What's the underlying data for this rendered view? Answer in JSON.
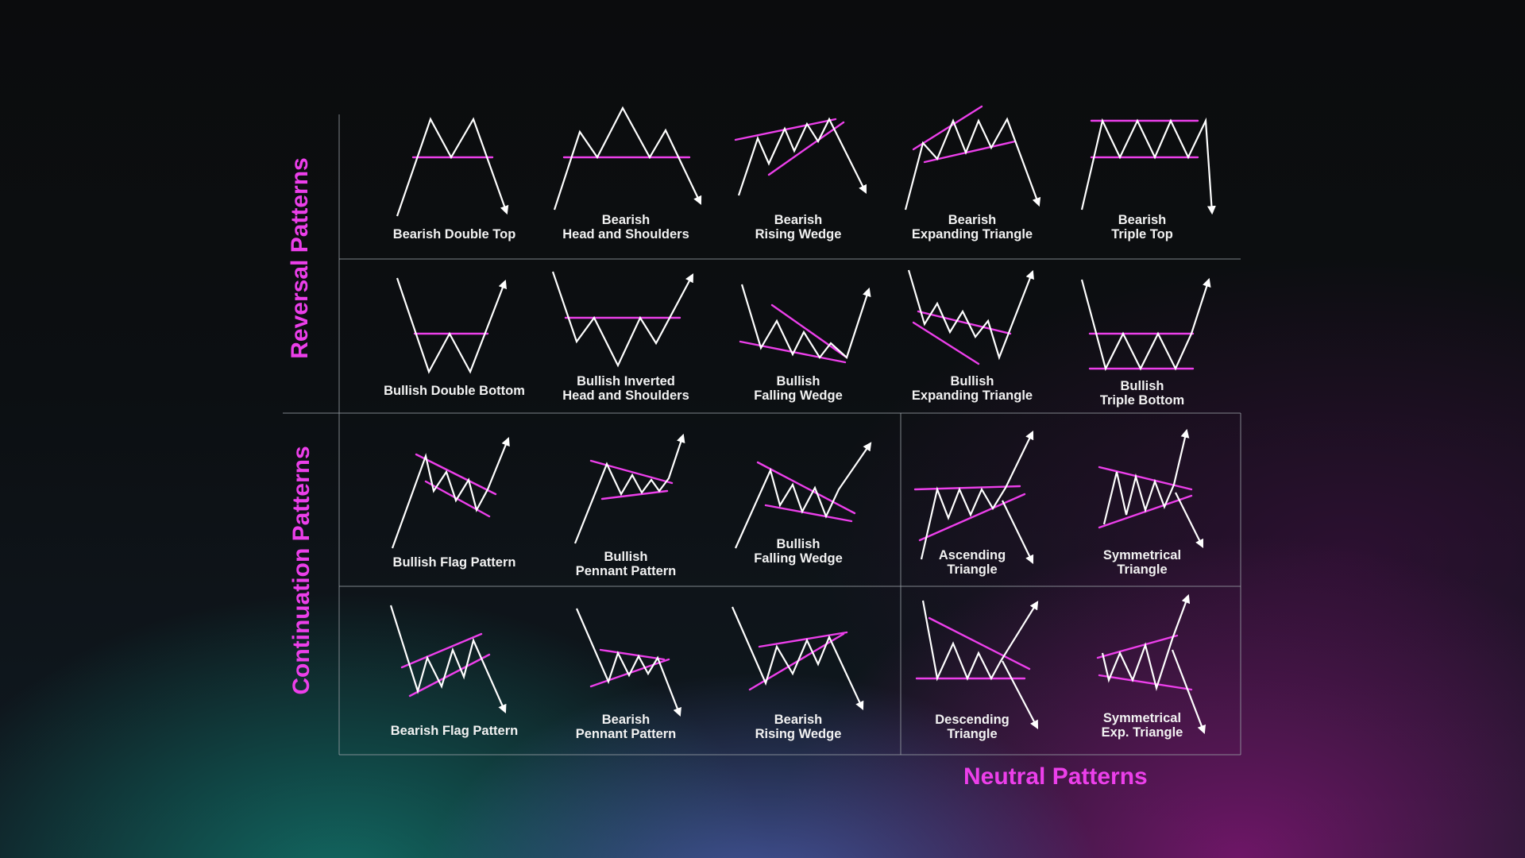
{
  "sections": {
    "reversal": "Reversal Patterns",
    "continuation": "Continuation Patterns",
    "neutral": "Neutral Patterns"
  },
  "colors": {
    "accent": "#ec3fea",
    "line": "#ffffff",
    "grid": "#9aa0a6"
  },
  "rows": [
    {
      "patterns": [
        {
          "label": "Bearish Double Top",
          "icon": "bearish-double-top-icon"
        },
        {
          "label": "Bearish\nHead and Shoulders",
          "icon": "bearish-head-and-shoulders-icon"
        },
        {
          "label": "Bearish\nRising Wedge",
          "icon": "bearish-rising-wedge-icon"
        },
        {
          "label": "Bearish\nExpanding Triangle",
          "icon": "bearish-expanding-triangle-icon"
        },
        {
          "label": "Bearish\nTriple Top",
          "icon": "bearish-triple-top-icon"
        }
      ]
    },
    {
      "patterns": [
        {
          "label": "Bullish Double Bottom",
          "icon": "bullish-double-bottom-icon"
        },
        {
          "label": "Bullish Inverted\nHead and Shoulders",
          "icon": "bullish-inverted-head-and-shoulders-icon"
        },
        {
          "label": "Bullish\nFalling Wedge",
          "icon": "bullish-falling-wedge-icon"
        },
        {
          "label": "Bullish\nExpanding Triangle",
          "icon": "bullish-expanding-triangle-icon"
        },
        {
          "label": "Bullish\nTriple Bottom",
          "icon": "bullish-triple-bottom-icon"
        }
      ]
    },
    {
      "patterns": [
        {
          "label": "Bullish Flag Pattern",
          "icon": "bullish-flag-icon"
        },
        {
          "label": "Bullish\nPennant Pattern",
          "icon": "bullish-pennant-icon"
        },
        {
          "label": "Bullish\nFalling Wedge",
          "icon": "bullish-falling-wedge-continuation-icon"
        },
        {
          "label": "Ascending\nTriangle",
          "icon": "ascending-triangle-icon"
        },
        {
          "label": "Symmetrical\nTriangle",
          "icon": "symmetrical-triangle-icon"
        }
      ]
    },
    {
      "patterns": [
        {
          "label": "Bearish Flag Pattern",
          "icon": "bearish-flag-icon"
        },
        {
          "label": "Bearish\nPennant Pattern",
          "icon": "bearish-pennant-icon"
        },
        {
          "label": "Bearish\nRising Wedge",
          "icon": "bearish-rising-wedge-continuation-icon"
        },
        {
          "label": "Descending\nTriangle",
          "icon": "descending-triangle-icon"
        },
        {
          "label": "Symmetrical\nExp. Triangle",
          "icon": "symmetrical-expanding-triangle-icon"
        }
      ]
    }
  ]
}
